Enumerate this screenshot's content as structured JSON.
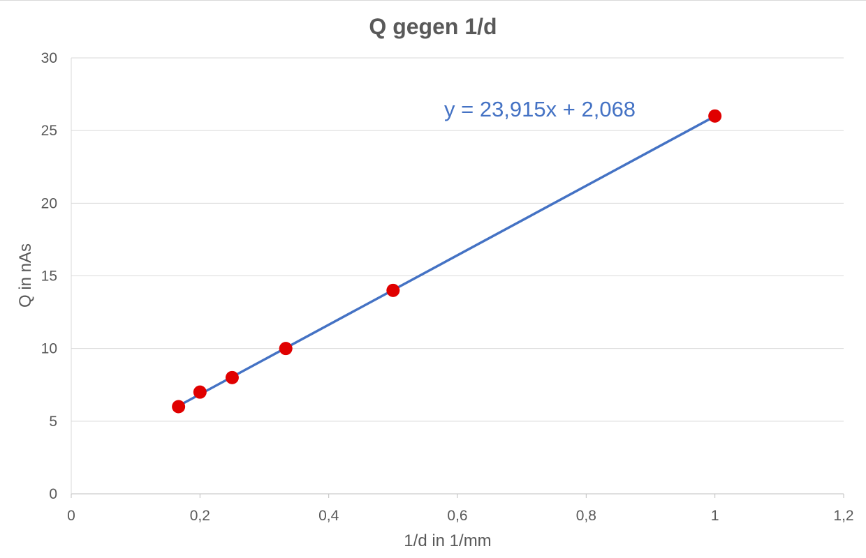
{
  "chart_data": {
    "type": "scatter",
    "title": "Q gegen 1/d",
    "xlabel": "1/d in 1/mm",
    "ylabel": "Q in nAs",
    "xlim": [
      0,
      1.2
    ],
    "ylim": [
      0,
      30
    ],
    "x_ticks": [
      0,
      0.2,
      0.4,
      0.6,
      0.8,
      1,
      1.2
    ],
    "x_tick_labels": [
      "0",
      "0,2",
      "0,4",
      "0,6",
      "0,8",
      "1",
      "1,2"
    ],
    "y_ticks": [
      0,
      5,
      10,
      15,
      20,
      25,
      30
    ],
    "y_tick_labels": [
      "0",
      "5",
      "10",
      "15",
      "20",
      "25",
      "30"
    ],
    "grid": "horizontal",
    "legend": "none",
    "series": [
      {
        "x": [
          0.1667,
          0.2,
          0.25,
          0.3333,
          0.5,
          1
        ],
        "y": [
          6,
          7,
          8,
          10,
          14,
          26
        ],
        "color": "#e00000"
      }
    ],
    "trendline": {
      "type": "linear",
      "slope": 23.915,
      "intercept": 2.068,
      "x_range": [
        0.1667,
        1
      ],
      "equation": "y = 23,915x + 2,068",
      "color": "#4472c4"
    }
  }
}
